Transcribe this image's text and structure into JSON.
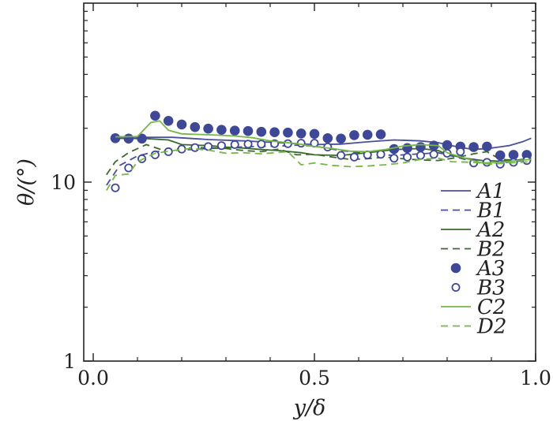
{
  "chart_data": {
    "type": "line",
    "xlabel": "y/δ",
    "ylabel": "θ/(°)",
    "xlim": [
      0,
      1
    ],
    "ylim": [
      1,
      100
    ],
    "yscale": "log",
    "grid": false,
    "legend_placement": "bottom-right",
    "x_ticks": [
      "0.0",
      "0.5",
      "1.0"
    ],
    "y_ticks": [
      "1",
      "10"
    ],
    "series": [
      {
        "name": "A1",
        "style": "solid",
        "color": "#4a4f9c",
        "points": [
          [
            0.04,
            18.0
          ],
          [
            0.12,
            17.8
          ],
          [
            0.18,
            17.8
          ],
          [
            0.26,
            17.3
          ],
          [
            0.34,
            17.0
          ],
          [
            0.42,
            16.6
          ],
          [
            0.5,
            16.2
          ],
          [
            0.56,
            16.3
          ],
          [
            0.62,
            16.8
          ],
          [
            0.68,
            17.2
          ],
          [
            0.74,
            17.0
          ],
          [
            0.78,
            16.6
          ],
          [
            0.82,
            15.8
          ],
          [
            0.86,
            15.2
          ],
          [
            0.9,
            15.5
          ],
          [
            0.94,
            16.0
          ],
          [
            0.97,
            16.8
          ],
          [
            0.99,
            17.6
          ]
        ]
      },
      {
        "name": "B1",
        "style": "dashed",
        "color": "#4a4f9c",
        "points": [
          [
            0.03,
            9.6
          ],
          [
            0.06,
            12.4
          ],
          [
            0.1,
            14.0
          ],
          [
            0.14,
            14.8
          ],
          [
            0.18,
            15.0
          ],
          [
            0.24,
            15.3
          ],
          [
            0.3,
            15.6
          ],
          [
            0.36,
            15.8
          ],
          [
            0.42,
            15.9
          ],
          [
            0.46,
            16.1
          ],
          [
            0.5,
            15.9
          ],
          [
            0.56,
            15.0
          ],
          [
            0.62,
            14.4
          ],
          [
            0.68,
            14.1
          ],
          [
            0.74,
            14.4
          ],
          [
            0.78,
            14.6
          ],
          [
            0.8,
            14.2
          ],
          [
            0.84,
            13.4
          ],
          [
            0.88,
            12.9
          ],
          [
            0.92,
            12.8
          ],
          [
            0.96,
            13.1
          ],
          [
            0.99,
            13.4
          ]
        ]
      },
      {
        "name": "A2",
        "style": "solid",
        "color": "#3b6a2c",
        "points": [
          [
            0.04,
            17.6
          ],
          [
            0.12,
            17.5
          ],
          [
            0.17,
            17.2
          ],
          [
            0.2,
            16.2
          ],
          [
            0.26,
            16.0
          ],
          [
            0.3,
            15.7
          ],
          [
            0.34,
            15.5
          ],
          [
            0.38,
            15.2
          ],
          [
            0.42,
            15.0
          ],
          [
            0.47,
            14.6
          ],
          [
            0.5,
            14.2
          ],
          [
            0.56,
            14.1
          ],
          [
            0.62,
            14.6
          ],
          [
            0.68,
            15.2
          ],
          [
            0.74,
            15.4
          ],
          [
            0.78,
            15.0
          ],
          [
            0.8,
            14.3
          ],
          [
            0.84,
            13.6
          ],
          [
            0.88,
            13.2
          ],
          [
            0.92,
            13.1
          ],
          [
            0.96,
            13.3
          ],
          [
            0.99,
            13.6
          ]
        ]
      },
      {
        "name": "B2",
        "style": "dashed",
        "color": "#3b6a2c",
        "points": [
          [
            0.03,
            11.0
          ],
          [
            0.05,
            13.0
          ],
          [
            0.08,
            14.6
          ],
          [
            0.12,
            16.2
          ],
          [
            0.16,
            15.0
          ],
          [
            0.2,
            15.4
          ],
          [
            0.24,
            15.6
          ],
          [
            0.28,
            15.5
          ],
          [
            0.3,
            15.4
          ],
          [
            0.34,
            15.0
          ],
          [
            0.38,
            14.8
          ],
          [
            0.42,
            15.3
          ],
          [
            0.46,
            14.2
          ],
          [
            0.5,
            14.3
          ],
          [
            0.54,
            13.8
          ],
          [
            0.58,
            13.4
          ],
          [
            0.62,
            13.5
          ],
          [
            0.66,
            13.8
          ],
          [
            0.7,
            13.5
          ],
          [
            0.74,
            13.3
          ],
          [
            0.78,
            13.2
          ],
          [
            0.82,
            13.7
          ],
          [
            0.86,
            14.4
          ],
          [
            0.89,
            14.8
          ],
          [
            0.92,
            13.4
          ],
          [
            0.96,
            13.2
          ],
          [
            0.99,
            13.3
          ]
        ]
      },
      {
        "name": "A3",
        "style": "filled-circle",
        "color": "#3f4896",
        "points": [
          [
            0.05,
            17.6
          ],
          [
            0.08,
            17.5
          ],
          [
            0.11,
            17.5
          ],
          [
            0.14,
            23.5
          ],
          [
            0.17,
            22.0
          ],
          [
            0.2,
            21.0
          ],
          [
            0.23,
            20.3
          ],
          [
            0.26,
            19.9
          ],
          [
            0.29,
            19.6
          ],
          [
            0.32,
            19.4
          ],
          [
            0.35,
            19.3
          ],
          [
            0.38,
            19.1
          ],
          [
            0.41,
            19.0
          ],
          [
            0.44,
            18.9
          ],
          [
            0.47,
            18.7
          ],
          [
            0.5,
            18.6
          ],
          [
            0.53,
            17.6
          ],
          [
            0.56,
            17.5
          ],
          [
            0.59,
            18.3
          ],
          [
            0.62,
            18.4
          ],
          [
            0.65,
            18.5
          ],
          [
            0.68,
            15.3
          ],
          [
            0.71,
            15.5
          ],
          [
            0.74,
            15.7
          ],
          [
            0.77,
            16.0
          ],
          [
            0.8,
            16.1
          ],
          [
            0.83,
            15.8
          ],
          [
            0.86,
            15.7
          ],
          [
            0.89,
            15.8
          ],
          [
            0.92,
            14.1
          ],
          [
            0.95,
            14.2
          ],
          [
            0.98,
            14.2
          ]
        ]
      },
      {
        "name": "B3",
        "style": "open-circle",
        "color": "#3f4896",
        "points": [
          [
            0.05,
            9.3
          ],
          [
            0.08,
            12.0
          ],
          [
            0.11,
            13.5
          ],
          [
            0.14,
            14.2
          ],
          [
            0.17,
            14.8
          ],
          [
            0.2,
            15.3
          ],
          [
            0.23,
            15.6
          ],
          [
            0.26,
            15.8
          ],
          [
            0.29,
            16.0
          ],
          [
            0.32,
            16.2
          ],
          [
            0.35,
            16.3
          ],
          [
            0.38,
            16.3
          ],
          [
            0.41,
            16.4
          ],
          [
            0.44,
            16.4
          ],
          [
            0.47,
            16.5
          ],
          [
            0.5,
            16.5
          ],
          [
            0.53,
            15.7
          ],
          [
            0.56,
            14.1
          ],
          [
            0.59,
            13.8
          ],
          [
            0.62,
            14.2
          ],
          [
            0.65,
            14.3
          ],
          [
            0.68,
            13.6
          ],
          [
            0.71,
            13.8
          ],
          [
            0.74,
            14.1
          ],
          [
            0.77,
            14.3
          ],
          [
            0.8,
            14.5
          ],
          [
            0.83,
            14.8
          ],
          [
            0.86,
            12.8
          ],
          [
            0.89,
            12.9
          ],
          [
            0.92,
            12.6
          ],
          [
            0.95,
            12.9
          ],
          [
            0.98,
            13.2
          ]
        ]
      },
      {
        "name": "C2",
        "style": "solid",
        "color": "#74b846",
        "points": [
          [
            0.05,
            17.9
          ],
          [
            0.1,
            18.0
          ],
          [
            0.13,
            21.5
          ],
          [
            0.15,
            22.0
          ],
          [
            0.17,
            19.5
          ],
          [
            0.2,
            18.6
          ],
          [
            0.26,
            18.4
          ],
          [
            0.32,
            18.1
          ],
          [
            0.36,
            17.7
          ],
          [
            0.4,
            17.0
          ],
          [
            0.46,
            16.4
          ],
          [
            0.5,
            15.8
          ],
          [
            0.54,
            15.4
          ],
          [
            0.58,
            14.9
          ],
          [
            0.62,
            14.8
          ],
          [
            0.66,
            15.2
          ],
          [
            0.7,
            15.9
          ],
          [
            0.74,
            16.2
          ],
          [
            0.78,
            16.0
          ],
          [
            0.8,
            14.6
          ],
          [
            0.84,
            13.6
          ],
          [
            0.88,
            12.8
          ],
          [
            0.92,
            12.9
          ],
          [
            0.96,
            13.2
          ],
          [
            0.99,
            13.4
          ]
        ]
      },
      {
        "name": "D2",
        "style": "dashed",
        "color": "#74b846",
        "points": [
          [
            0.03,
            9.0
          ],
          [
            0.05,
            10.9
          ],
          [
            0.08,
            11.1
          ],
          [
            0.1,
            13.0
          ],
          [
            0.14,
            14.5
          ],
          [
            0.18,
            15.0
          ],
          [
            0.22,
            15.4
          ],
          [
            0.26,
            15.1
          ],
          [
            0.3,
            14.5
          ],
          [
            0.34,
            14.6
          ],
          [
            0.38,
            14.4
          ],
          [
            0.44,
            14.8
          ],
          [
            0.47,
            12.5
          ],
          [
            0.5,
            12.8
          ],
          [
            0.54,
            12.4
          ],
          [
            0.58,
            12.2
          ],
          [
            0.62,
            12.3
          ],
          [
            0.66,
            12.5
          ],
          [
            0.7,
            12.8
          ],
          [
            0.74,
            13.4
          ],
          [
            0.78,
            13.6
          ],
          [
            0.81,
            13.0
          ],
          [
            0.86,
            12.9
          ],
          [
            0.9,
            12.6
          ],
          [
            0.94,
            12.8
          ],
          [
            0.99,
            13.0
          ]
        ]
      }
    ]
  }
}
